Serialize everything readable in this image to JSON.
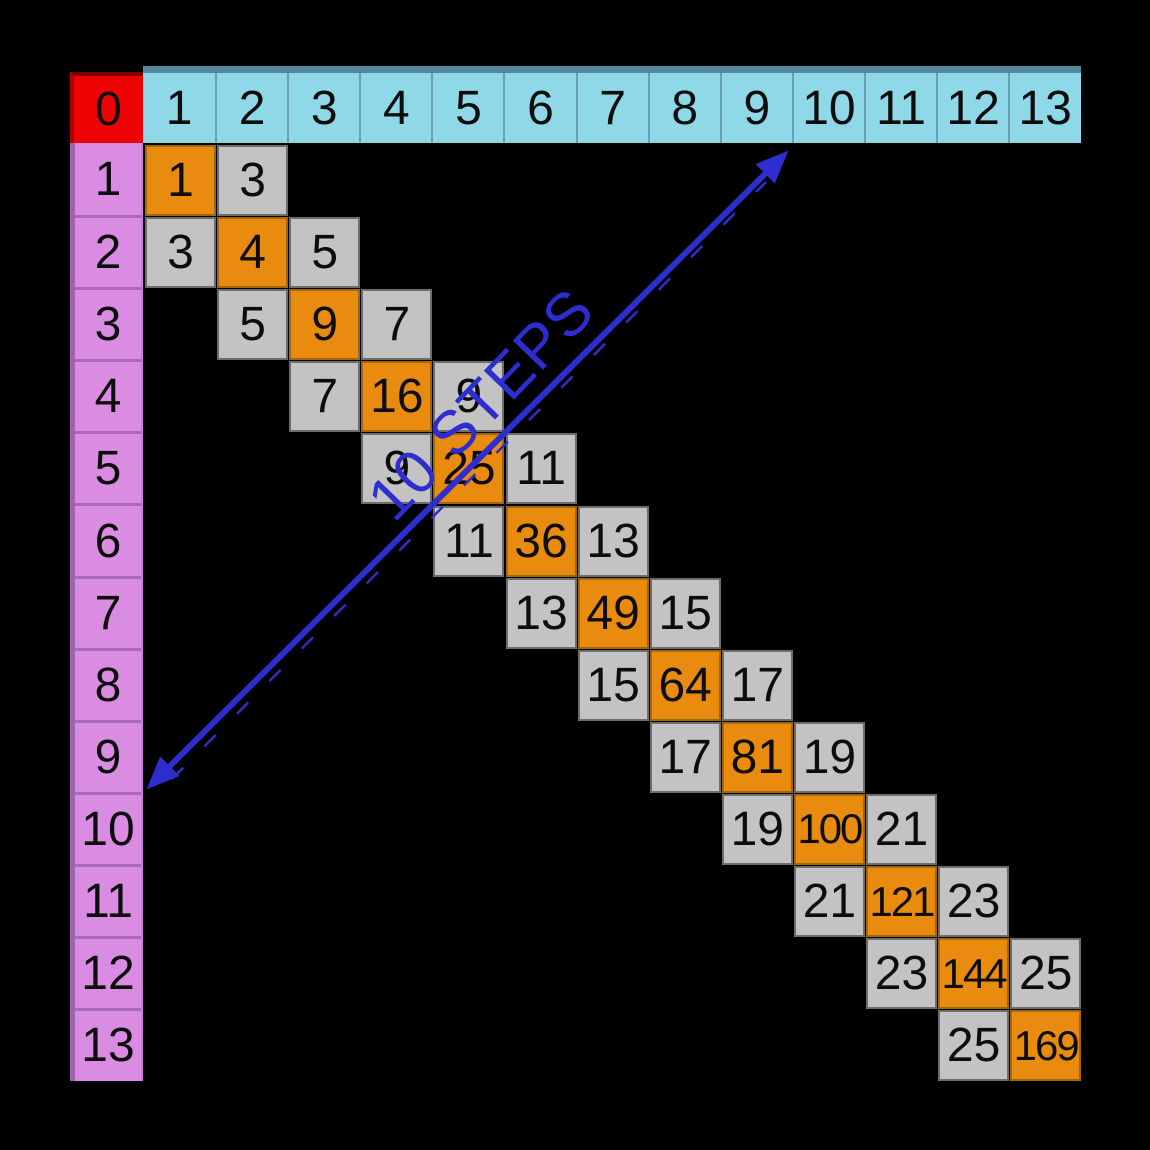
{
  "diagram": {
    "corner_label": "0",
    "top_header_labels": [
      "1",
      "2",
      "3",
      "4",
      "5",
      "6",
      "7",
      "8",
      "9",
      "10",
      "11",
      "12",
      "13"
    ],
    "left_header_labels": [
      "1",
      "2",
      "3",
      "4",
      "5",
      "6",
      "7",
      "8",
      "9",
      "10",
      "11",
      "12",
      "13"
    ],
    "diagonal_cells": [
      {
        "row": 1,
        "col": 1,
        "value": "1",
        "type": "square"
      },
      {
        "row": 1,
        "col": 2,
        "value": "3",
        "type": "neighbor"
      },
      {
        "row": 2,
        "col": 1,
        "value": "3",
        "type": "neighbor"
      },
      {
        "row": 2,
        "col": 2,
        "value": "4",
        "type": "square"
      },
      {
        "row": 2,
        "col": 3,
        "value": "5",
        "type": "neighbor"
      },
      {
        "row": 3,
        "col": 2,
        "value": "5",
        "type": "neighbor"
      },
      {
        "row": 3,
        "col": 3,
        "value": "9",
        "type": "square"
      },
      {
        "row": 3,
        "col": 4,
        "value": "7",
        "type": "neighbor"
      },
      {
        "row": 4,
        "col": 3,
        "value": "7",
        "type": "neighbor"
      },
      {
        "row": 4,
        "col": 4,
        "value": "16",
        "type": "square"
      },
      {
        "row": 4,
        "col": 5,
        "value": "9",
        "type": "neighbor"
      },
      {
        "row": 5,
        "col": 4,
        "value": "9",
        "type": "neighbor"
      },
      {
        "row": 5,
        "col": 5,
        "value": "25",
        "type": "square"
      },
      {
        "row": 5,
        "col": 6,
        "value": "11",
        "type": "neighbor"
      },
      {
        "row": 6,
        "col": 5,
        "value": "11",
        "type": "neighbor"
      },
      {
        "row": 6,
        "col": 6,
        "value": "36",
        "type": "square"
      },
      {
        "row": 6,
        "col": 7,
        "value": "13",
        "type": "neighbor"
      },
      {
        "row": 7,
        "col": 6,
        "value": "13",
        "type": "neighbor"
      },
      {
        "row": 7,
        "col": 7,
        "value": "49",
        "type": "square"
      },
      {
        "row": 7,
        "col": 8,
        "value": "15",
        "type": "neighbor"
      },
      {
        "row": 8,
        "col": 7,
        "value": "15",
        "type": "neighbor"
      },
      {
        "row": 8,
        "col": 8,
        "value": "64",
        "type": "square"
      },
      {
        "row": 8,
        "col": 9,
        "value": "17",
        "type": "neighbor"
      },
      {
        "row": 9,
        "col": 8,
        "value": "17",
        "type": "neighbor"
      },
      {
        "row": 9,
        "col": 9,
        "value": "81",
        "type": "square"
      },
      {
        "row": 9,
        "col": 10,
        "value": "19",
        "type": "neighbor"
      },
      {
        "row": 10,
        "col": 9,
        "value": "19",
        "type": "neighbor"
      },
      {
        "row": 10,
        "col": 10,
        "value": "100",
        "type": "square"
      },
      {
        "row": 10,
        "col": 11,
        "value": "21",
        "type": "neighbor"
      },
      {
        "row": 11,
        "col": 10,
        "value": "21",
        "type": "neighbor"
      },
      {
        "row": 11,
        "col": 11,
        "value": "121",
        "type": "square"
      },
      {
        "row": 11,
        "col": 12,
        "value": "23",
        "type": "neighbor"
      },
      {
        "row": 12,
        "col": 11,
        "value": "23",
        "type": "neighbor"
      },
      {
        "row": 12,
        "col": 12,
        "value": "144",
        "type": "square"
      },
      {
        "row": 12,
        "col": 13,
        "value": "25",
        "type": "neighbor"
      },
      {
        "row": 13,
        "col": 12,
        "value": "25",
        "type": "neighbor"
      },
      {
        "row": 13,
        "col": 13,
        "value": "169",
        "type": "square"
      }
    ],
    "arrow": {
      "label": "10 STEPS"
    }
  },
  "colors": {
    "background": "#000000",
    "corner_red": "#ee0404",
    "corner_red_dark": "#7c0000",
    "corner_red_edge": "#ab0707",
    "header_cyan": "#8ed8e8",
    "header_cyan_dark": "#54889e",
    "header_cyan_sep": "#6c9fb2",
    "header_pink": "#da8ce2",
    "header_pink_dark": "#a869b8",
    "header_pink_edge": "#9d63ad",
    "header_pink_light": "#c77ed4",
    "square_orange": "#e88b0e",
    "square_orange_border": "#a5660b",
    "neighbor_gray": "#c3c3c3",
    "neighbor_gray_border": "#6d6d6d",
    "arrow_blue": "#2e2ed0",
    "number_black": "#0d0d0d"
  }
}
